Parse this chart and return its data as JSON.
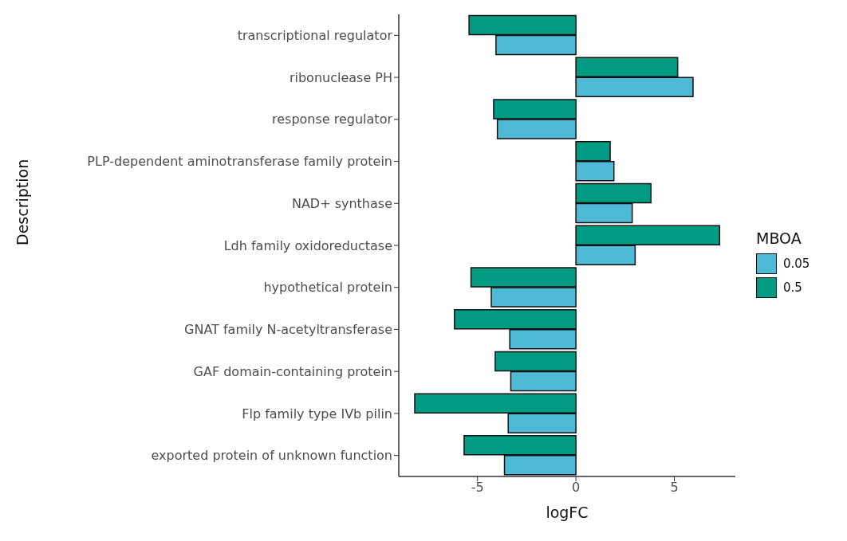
{
  "chart_data": {
    "type": "bar",
    "orientation": "horizontal",
    "xlabel": "logFC",
    "ylabel": "Description",
    "legend_title": "MBOA",
    "legend": "right",
    "grid": false,
    "categories": [
      "transcriptional regulator",
      "ribonuclease PH",
      "response regulator",
      "PLP-dependent aminotransferase family protein",
      "NAD+ synthase",
      "Ldh family oxidoreductase",
      "hypothetical protein",
      "GNAT family N-acetyltransferase",
      "GAF domain-containing protein",
      "Flp family type IVb pilin",
      "exported protein of unknown function"
    ],
    "series": [
      {
        "name": "0.05",
        "color": "#4fbad6",
        "values": [
          -4.06,
          5.95,
          -3.99,
          1.93,
          2.86,
          3.01,
          -4.3,
          -3.36,
          -3.31,
          -3.44,
          -3.63
        ]
      },
      {
        "name": "0.5",
        "color": "#009b82",
        "values": [
          -5.43,
          5.17,
          -4.18,
          1.74,
          3.81,
          7.3,
          -5.33,
          -6.17,
          -4.1,
          -8.19,
          -5.68
        ]
      }
    ],
    "xlim": [
      -9,
      8.1
    ],
    "xticks": [
      -5,
      0,
      5
    ]
  }
}
